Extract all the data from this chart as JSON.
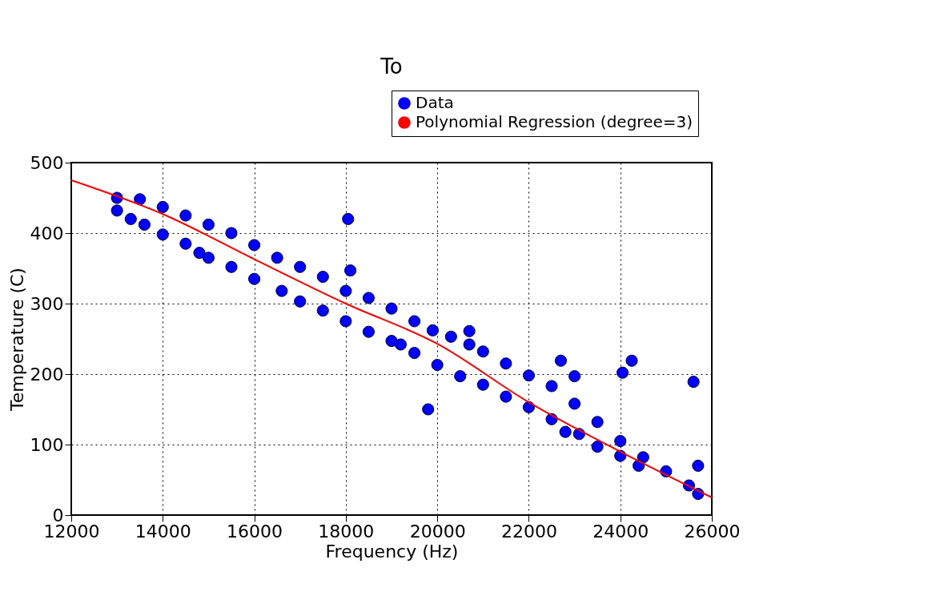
{
  "chart_data": {
    "type": "scatter",
    "title": "To",
    "xlabel": "Frequency (Hz)",
    "ylabel": "Temperature (C)",
    "xlim": [
      12000,
      26000
    ],
    "ylim": [
      0,
      500
    ],
    "xticks": [
      12000,
      14000,
      16000,
      18000,
      20000,
      22000,
      24000,
      26000
    ],
    "yticks": [
      0,
      100,
      200,
      300,
      400,
      500
    ],
    "grid": true,
    "legend": "top right",
    "series": [
      {
        "name": "Data",
        "marker": "circle",
        "color": "#0000ff",
        "x": [
          13000,
          13500,
          14000,
          14500,
          15000,
          15500,
          16000,
          16500,
          17000,
          17500,
          18000,
          18500,
          19000,
          19500,
          19900,
          20300,
          20700,
          21000,
          21500,
          22000,
          22500,
          23000,
          23500,
          24000,
          24500,
          25000,
          25500,
          25700,
          13000,
          13300,
          13600,
          14000,
          14500,
          14800,
          15000,
          15500,
          16000,
          16600,
          17000,
          17500,
          18000,
          18500,
          19000,
          19200,
          19500,
          20000,
          20500,
          21000,
          21500,
          22000,
          22500,
          22800,
          23100,
          23500,
          24000,
          24400,
          18050,
          18100,
          19800,
          20700,
          22700,
          23000,
          24050,
          24250,
          25600,
          25700
        ],
        "values": [
          450,
          448,
          437,
          425,
          412,
          400,
          383,
          365,
          352,
          338,
          318,
          308,
          293,
          275,
          262,
          253,
          242,
          232,
          215,
          198,
          183,
          158,
          132,
          105,
          82,
          62,
          42,
          30,
          432,
          420,
          412,
          398,
          385,
          372,
          365,
          352,
          335,
          318,
          303,
          290,
          275,
          260,
          247,
          242,
          230,
          213,
          197,
          185,
          168,
          153,
          136,
          118,
          115,
          97,
          84,
          70,
          420,
          347,
          150,
          261,
          219,
          197,
          202,
          219,
          189,
          70
        ]
      },
      {
        "name": "Polynomial Regression (degree=3)",
        "type": "line",
        "color": "#ff0000",
        "x": [
          12000,
          14000,
          16000,
          18000,
          20000,
          22000,
          24000,
          26000
        ],
        "values": [
          475,
          427,
          363,
          300,
          243,
          160,
          90,
          25
        ]
      }
    ]
  }
}
